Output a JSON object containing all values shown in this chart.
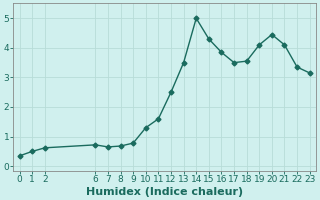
{
  "x": [
    0,
    1,
    2,
    6,
    7,
    8,
    9,
    10,
    11,
    12,
    13,
    14,
    15,
    16,
    17,
    18,
    19,
    20,
    21,
    22,
    23
  ],
  "y": [
    0.35,
    0.5,
    0.62,
    0.72,
    0.65,
    0.68,
    0.78,
    1.3,
    1.6,
    2.5,
    3.5,
    5.0,
    4.3,
    3.85,
    3.5,
    3.55,
    4.1,
    4.45,
    4.1,
    3.35,
    3.15
  ],
  "line_color": "#1a6b5e",
  "bg_color": "#d0f0ee",
  "grid_color": "#b8dcd8",
  "spine_color": "#888888",
  "xlabel": "Humidex (Indice chaleur)",
  "xlabel_fontsize": 8,
  "ylim": [
    -0.15,
    5.5
  ],
  "xlim": [
    -0.5,
    23.5
  ],
  "xticks": [
    0,
    1,
    2,
    6,
    7,
    8,
    9,
    10,
    11,
    12,
    13,
    14,
    15,
    16,
    17,
    18,
    19,
    20,
    21,
    22,
    23
  ],
  "yticks": [
    0,
    1,
    2,
    3,
    4,
    5
  ],
  "tick_fontsize": 6.5,
  "marker": "D",
  "marker_size": 2.5,
  "linewidth": 1.0
}
